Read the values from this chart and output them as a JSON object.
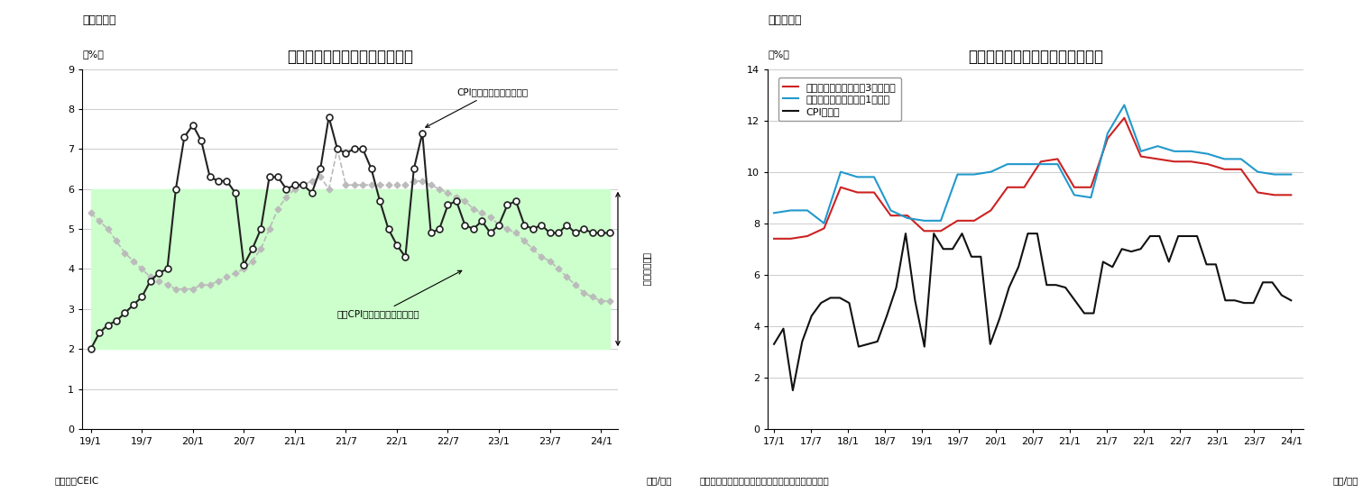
{
  "chart3": {
    "title": "消費者物価上昇とインフレ目標",
    "subtitle": "（図表３）",
    "ylabel": "（%）",
    "xlabel_note": "（資料）CEIC",
    "xlabel_unit": "（年/月）",
    "inflation_target_label": "インフレ目標",
    "target_min": 2,
    "target_max": 6,
    "x_ticks": [
      "19/1",
      "19/7",
      "20/1",
      "20/7",
      "21/1",
      "21/7",
      "22/1",
      "22/7",
      "23/1",
      "23/7",
      "24/1"
    ],
    "tick_positions": [
      0,
      6,
      12,
      18,
      24,
      30,
      36,
      42,
      48,
      54,
      60
    ],
    "ylim": [
      0,
      9
    ],
    "yticks": [
      0,
      1,
      2,
      3,
      4,
      5,
      6,
      7,
      8,
      9
    ],
    "cpi_label": "CPI上昇率（前年同月比）",
    "core_cpi_label": "コアCPI上昇率（前年同月比）",
    "cpi_color": "#222222",
    "core_cpi_color": "#bbbbbb",
    "target_fill_color": "#ccffcc",
    "cpi_data": [
      2.0,
      2.4,
      2.6,
      2.7,
      2.9,
      3.1,
      3.3,
      3.7,
      3.9,
      4.0,
      6.0,
      7.3,
      7.6,
      7.2,
      6.3,
      6.2,
      6.2,
      5.9,
      4.1,
      4.5,
      5.0,
      6.3,
      6.3,
      6.0,
      6.1,
      6.1,
      5.9,
      6.5,
      7.8,
      7.0,
      6.9,
      7.0,
      7.0,
      6.5,
      5.7,
      5.0,
      4.6,
      4.3,
      6.5,
      7.4,
      4.9,
      5.0,
      5.6,
      5.7,
      5.1,
      5.0,
      5.2,
      4.9,
      5.1,
      5.6,
      5.7,
      5.1,
      5.0,
      5.1,
      4.9,
      4.9,
      5.1,
      4.9,
      5.0,
      4.9,
      4.9,
      4.9
    ],
    "core_cpi_data": [
      5.4,
      5.2,
      5.0,
      4.7,
      4.4,
      4.2,
      4.0,
      3.8,
      3.7,
      3.6,
      3.5,
      3.5,
      3.5,
      3.6,
      3.6,
      3.7,
      3.8,
      3.9,
      4.0,
      4.2,
      4.5,
      5.0,
      5.5,
      5.8,
      6.0,
      6.1,
      6.2,
      6.3,
      6.0,
      7.0,
      6.1,
      6.1,
      6.1,
      6.1,
      6.1,
      6.1,
      6.1,
      6.1,
      6.2,
      6.2,
      6.1,
      6.0,
      5.9,
      5.8,
      5.7,
      5.5,
      5.4,
      5.3,
      5.1,
      5.0,
      4.9,
      4.7,
      4.5,
      4.3,
      4.2,
      4.0,
      3.8,
      3.6,
      3.4,
      3.3,
      3.2,
      3.2
    ]
  },
  "chart4": {
    "title": "インフレ率と家計のインフレ期待",
    "subtitle": "（図表４）",
    "ylabel": "（%）",
    "xlabel_note": "（資料）インド統計・計画実施省、インド準備銀行",
    "xlabel_unit": "（年/月）",
    "ylim": [
      0,
      14
    ],
    "yticks": [
      0,
      2,
      4,
      6,
      8,
      10,
      12,
      14
    ],
    "x_ticks": [
      "17/1",
      "17/7",
      "18/1",
      "18/7",
      "19/1",
      "19/7",
      "20/1",
      "20/7",
      "21/1",
      "21/7",
      "22/1",
      "22/7",
      "23/1",
      "23/7",
      "24/1"
    ],
    "legend_3m": "家計のインフレ期待（3ヵ月先）",
    "legend_1y": "家計のインフレ期待（1年先）",
    "legend_cpi": "CPI上昇率",
    "color_3m": "#cc2222",
    "color_1y": "#2299cc",
    "color_cpi": "#111111",
    "expect_3m": [
      7.4,
      7.4,
      7.5,
      7.8,
      9.4,
      9.2,
      9.2,
      8.3,
      8.3,
      7.7,
      7.7,
      8.1,
      8.1,
      8.5,
      9.4,
      9.4,
      10.4,
      10.5,
      9.4,
      9.4,
      11.3,
      12.1,
      10.6,
      10.5,
      10.4,
      10.4,
      10.3,
      10.1,
      10.1,
      9.2,
      9.1,
      9.1
    ],
    "expect_1y": [
      8.4,
      8.5,
      8.5,
      8.0,
      10.0,
      9.8,
      9.8,
      8.5,
      8.2,
      8.1,
      8.1,
      9.9,
      9.9,
      10.0,
      10.3,
      10.3,
      10.3,
      10.3,
      9.1,
      9.0,
      11.5,
      12.6,
      10.8,
      11.0,
      10.8,
      10.8,
      10.7,
      10.5,
      10.5,
      10.0,
      9.9,
      9.9
    ],
    "cpi_india": [
      3.3,
      3.9,
      1.5,
      3.4,
      4.4,
      4.9,
      5.1,
      5.1,
      4.9,
      3.2,
      3.3,
      3.4,
      4.4,
      5.5,
      7.6,
      5.0,
      3.2,
      7.6,
      7.0,
      7.0,
      7.6,
      6.7,
      6.7,
      3.3,
      4.3,
      5.5,
      6.3,
      7.6,
      7.6,
      5.6,
      5.6,
      5.5,
      5.0,
      4.5,
      4.5,
      6.5,
      6.3,
      7.0,
      6.9,
      7.0,
      7.5,
      7.5,
      6.5,
      7.5,
      7.5,
      7.5,
      6.4,
      6.4,
      5.0,
      5.0,
      4.9,
      4.9,
      5.7,
      5.7,
      5.2,
      5.0
    ]
  }
}
